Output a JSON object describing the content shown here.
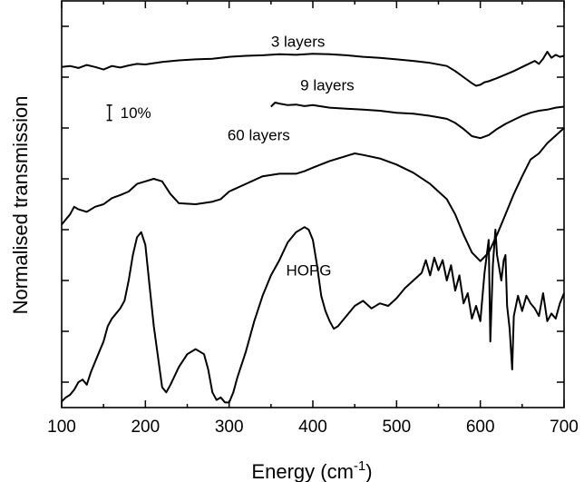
{
  "chart_data": {
    "type": "line",
    "title": "",
    "xlabel": "Energy (cm",
    "xlabel_sup": "-1",
    "xlabel_close": ")",
    "ylabel": "Normalised transmission",
    "xlim": [
      100,
      700
    ],
    "xticks": [
      100,
      200,
      300,
      400,
      500,
      600,
      700
    ],
    "xtick_labels": [
      "100",
      "200",
      "300",
      "400",
      "500",
      "600",
      "700"
    ],
    "ylim": [
      0,
      8
    ],
    "yticks": [
      0.5,
      1.5,
      2.5,
      3.5,
      4.5,
      5.5,
      6.5,
      7.5
    ],
    "y_tick_labels_shown": false,
    "grid": false,
    "legend": "none",
    "scale_bar": {
      "label": "10%",
      "x": 157,
      "y_from": 5.65,
      "y_to": 5.95
    },
    "series": [
      {
        "name": "3 layers",
        "label_pos": [
          350,
          7.1
        ],
        "x": [
          100,
          110,
          120,
          130,
          140,
          150,
          160,
          170,
          180,
          190,
          200,
          220,
          240,
          260,
          280,
          300,
          320,
          340,
          360,
          380,
          400,
          420,
          440,
          460,
          480,
          500,
          520,
          540,
          560,
          570,
          580,
          590,
          595,
          600,
          605,
          610,
          620,
          630,
          640,
          650,
          660,
          665,
          670,
          675,
          680,
          685,
          690,
          695,
          700
        ],
        "y": [
          6.7,
          6.72,
          6.68,
          6.74,
          6.7,
          6.65,
          6.72,
          6.69,
          6.73,
          6.76,
          6.75,
          6.8,
          6.83,
          6.85,
          6.86,
          6.9,
          6.92,
          6.93,
          6.95,
          6.94,
          6.96,
          6.95,
          6.93,
          6.9,
          6.88,
          6.85,
          6.82,
          6.78,
          6.72,
          6.62,
          6.5,
          6.38,
          6.33,
          6.35,
          6.4,
          6.42,
          6.48,
          6.55,
          6.62,
          6.7,
          6.78,
          6.82,
          6.76,
          6.86,
          7.0,
          6.88,
          6.94,
          6.9,
          6.92
        ]
      },
      {
        "name": "9 layers",
        "label_pos": [
          385,
          6.24
        ],
        "x": [
          350,
          355,
          360,
          370,
          380,
          390,
          400,
          420,
          440,
          460,
          480,
          500,
          520,
          540,
          560,
          570,
          580,
          590,
          600,
          610,
          620,
          630,
          640,
          650,
          660,
          670,
          680,
          690,
          700
        ],
        "y": [
          5.92,
          6.0,
          5.98,
          5.95,
          5.96,
          5.93,
          5.95,
          5.9,
          5.88,
          5.86,
          5.84,
          5.8,
          5.78,
          5.74,
          5.68,
          5.6,
          5.48,
          5.34,
          5.3,
          5.36,
          5.48,
          5.58,
          5.66,
          5.74,
          5.8,
          5.84,
          5.86,
          5.9,
          5.92
        ]
      },
      {
        "name": "60 layers",
        "label_pos": [
          298,
          5.26
        ],
        "x": [
          100,
          105,
          110,
          115,
          120,
          130,
          140,
          150,
          160,
          170,
          180,
          190,
          200,
          210,
          220,
          230,
          240,
          260,
          280,
          290,
          300,
          320,
          340,
          360,
          380,
          390,
          400,
          420,
          440,
          450,
          460,
          480,
          500,
          520,
          540,
          560,
          570,
          580,
          590,
          600,
          610,
          620,
          630,
          640,
          650,
          660,
          670,
          680,
          690,
          700
        ],
        "y": [
          3.6,
          3.7,
          3.8,
          3.95,
          3.9,
          3.85,
          3.95,
          4.0,
          4.12,
          4.18,
          4.25,
          4.4,
          4.45,
          4.5,
          4.45,
          4.2,
          4.02,
          4.0,
          4.05,
          4.1,
          4.25,
          4.4,
          4.55,
          4.6,
          4.6,
          4.65,
          4.72,
          4.85,
          4.95,
          5.0,
          4.97,
          4.9,
          4.78,
          4.62,
          4.4,
          4.1,
          3.8,
          3.4,
          3.05,
          2.88,
          3.05,
          3.4,
          3.8,
          4.2,
          4.55,
          4.88,
          5.0,
          5.2,
          5.35,
          5.5
        ]
      },
      {
        "name": "HOPG",
        "label_pos": [
          368,
          2.6
        ],
        "x": [
          100,
          105,
          110,
          115,
          120,
          125,
          130,
          135,
          140,
          145,
          150,
          155,
          160,
          165,
          170,
          175,
          180,
          185,
          190,
          195,
          200,
          205,
          210,
          215,
          220,
          225,
          230,
          240,
          250,
          260,
          270,
          275,
          280,
          285,
          290,
          295,
          300,
          305,
          310,
          320,
          330,
          340,
          350,
          360,
          370,
          380,
          390,
          395,
          400,
          405,
          410,
          415,
          420,
          425,
          430,
          440,
          450,
          460,
          470,
          480,
          490,
          500,
          510,
          520,
          530,
          535,
          540,
          545,
          550,
          555,
          560,
          565,
          570,
          575,
          580,
          585,
          590,
          595,
          600,
          605,
          610,
          612,
          615,
          618,
          620,
          622,
          625,
          628,
          630,
          632,
          635,
          638,
          640,
          645,
          650,
          655,
          660,
          665,
          670,
          675,
          680,
          685,
          690,
          695,
          700
        ],
        "y": [
          0.12,
          0.2,
          0.25,
          0.35,
          0.5,
          0.55,
          0.45,
          0.7,
          0.9,
          1.1,
          1.3,
          1.6,
          1.75,
          1.85,
          1.95,
          2.1,
          2.5,
          3.0,
          3.35,
          3.45,
          3.2,
          2.4,
          1.6,
          1.0,
          0.4,
          0.3,
          0.45,
          0.8,
          1.05,
          1.15,
          1.05,
          0.75,
          0.3,
          0.15,
          0.2,
          0.1,
          0.1,
          0.3,
          0.6,
          1.1,
          1.7,
          2.2,
          2.6,
          2.9,
          3.25,
          3.45,
          3.55,
          3.5,
          3.3,
          2.8,
          2.2,
          1.9,
          1.7,
          1.55,
          1.6,
          1.8,
          2.0,
          2.1,
          1.95,
          2.05,
          2.0,
          2.15,
          2.35,
          2.5,
          2.65,
          2.9,
          2.6,
          2.95,
          2.7,
          2.9,
          2.5,
          2.8,
          2.3,
          2.6,
          2.05,
          2.25,
          1.75,
          2.0,
          1.7,
          2.65,
          3.3,
          1.3,
          2.8,
          3.5,
          3.0,
          2.8,
          2.5,
          2.9,
          3.0,
          2.0,
          1.55,
          0.75,
          1.8,
          2.2,
          1.9,
          2.2,
          2.05,
          1.95,
          1.8,
          2.25,
          1.7,
          1.85,
          1.75,
          2.05,
          2.25
        ]
      }
    ]
  }
}
